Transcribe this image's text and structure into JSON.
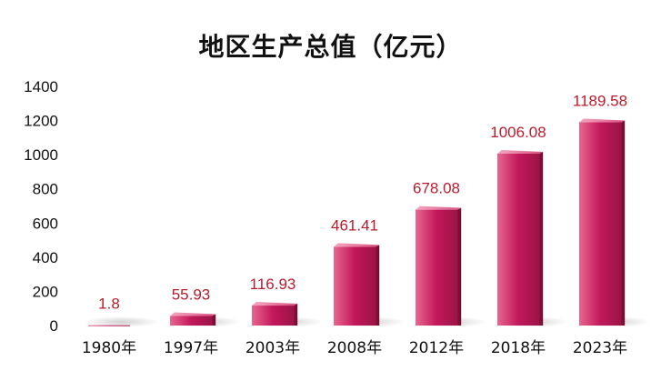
{
  "chart_data": {
    "type": "bar",
    "title": "地区生产总值（亿元）",
    "categories": [
      "1980年",
      "1997年",
      "2003年",
      "2008年",
      "2012年",
      "2018年",
      "2023年"
    ],
    "values": [
      1.8,
      55.93,
      116.93,
      461.41,
      678.08,
      1006.08,
      1189.58
    ],
    "data_labels": [
      "1.8",
      "55.93",
      "116.93",
      "461.41",
      "678.08",
      "1006.08",
      "1189.58"
    ],
    "ylim": [
      0,
      1400
    ],
    "yticks": [
      "0",
      "200",
      "400",
      "600",
      "800",
      "1000",
      "1200",
      "1400"
    ],
    "xlabel": "",
    "ylabel": "",
    "grid": false,
    "legend": "none",
    "bar_color": "#c2185b",
    "label_color": "#b81c2c"
  }
}
